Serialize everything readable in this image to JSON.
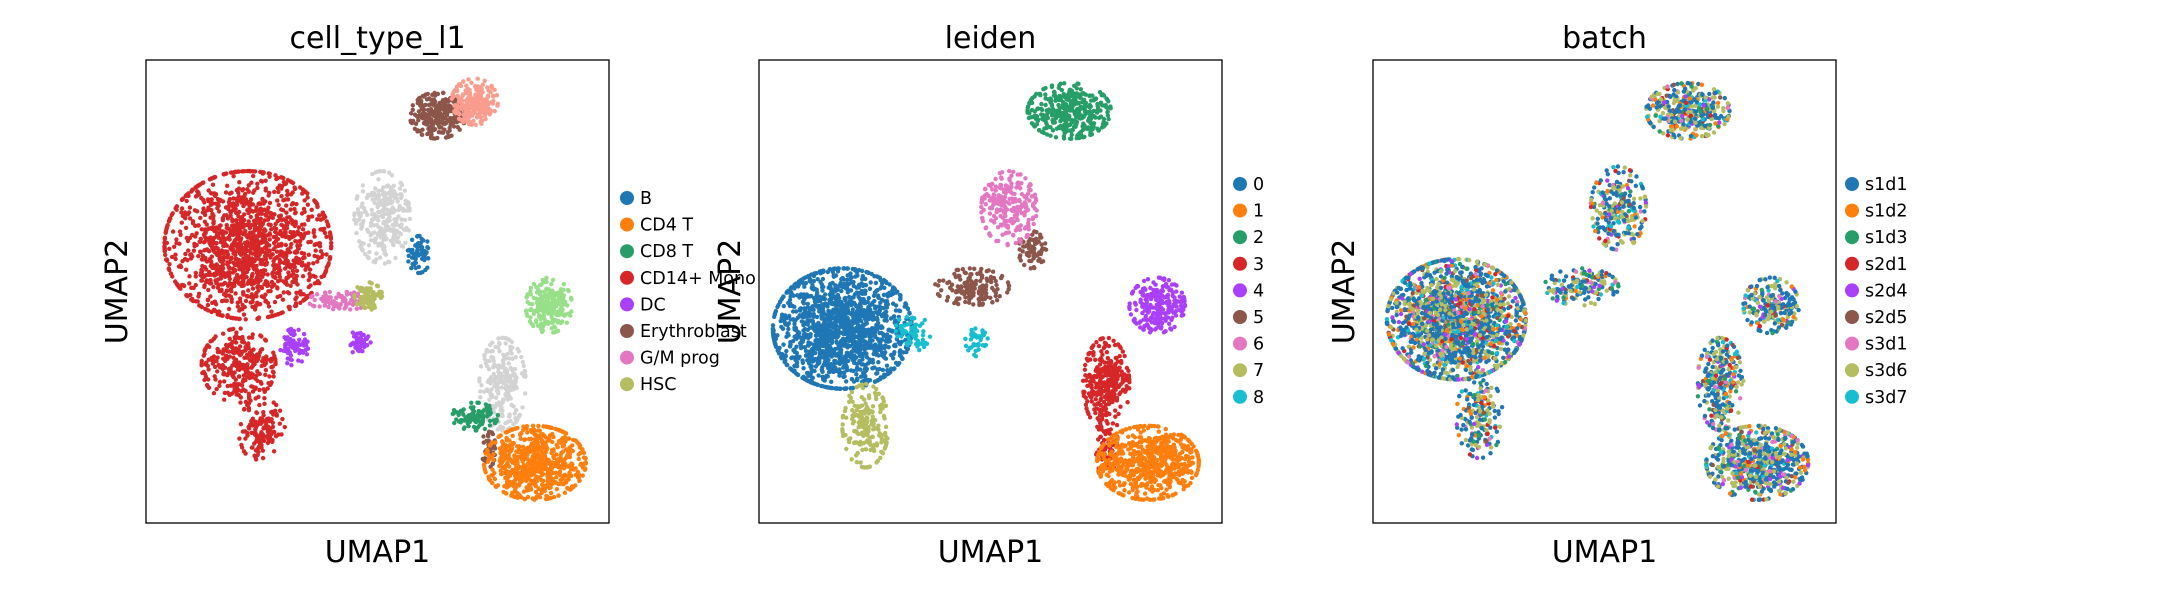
{
  "chart_data": [
    {
      "type": "scatter",
      "title": "cell_type_l1",
      "xlabel": "UMAP1",
      "ylabel": "UMAP2",
      "xticks": false,
      "yticks": false,
      "legend_position": "right",
      "legend": [
        {
          "label": "B",
          "color": "#1f77b4"
        },
        {
          "label": "CD4 T",
          "color": "#ff7f0e"
        },
        {
          "label": "CD8 T",
          "color": "#279e68"
        },
        {
          "label": "CD14+ Mono",
          "color": "#d62728"
        },
        {
          "label": "DC",
          "color": "#aa40fc"
        },
        {
          "label": "Erythroblast",
          "color": "#8c564b"
        },
        {
          "label": "G/M prog",
          "color": "#e377c2"
        },
        {
          "label": "HSC",
          "color": "#b5bd61"
        }
      ],
      "other_color": "#d3d3d3",
      "clusters": [
        {
          "category": "CD14+ Mono",
          "color": "#d62728",
          "cx": 0.22,
          "cy": 0.4,
          "rx": 0.18,
          "ry": 0.16,
          "n": 1400
        },
        {
          "category": "CD14+ Mono",
          "color": "#d62728",
          "cx": 0.2,
          "cy": 0.66,
          "rx": 0.08,
          "ry": 0.08,
          "n": 300
        },
        {
          "category": "CD14+ Mono",
          "color": "#d62728",
          "cx": 0.25,
          "cy": 0.8,
          "rx": 0.05,
          "ry": 0.07,
          "n": 130
        },
        {
          "category": "DC",
          "color": "#aa40fc",
          "cx": 0.32,
          "cy": 0.62,
          "rx": 0.03,
          "ry": 0.04,
          "n": 70
        },
        {
          "category": "DC",
          "color": "#aa40fc",
          "cx": 0.46,
          "cy": 0.61,
          "rx": 0.025,
          "ry": 0.025,
          "n": 50
        },
        {
          "category": "G/M prog",
          "color": "#e377c2",
          "cx": 0.42,
          "cy": 0.52,
          "rx": 0.07,
          "ry": 0.02,
          "n": 80
        },
        {
          "category": "HSC",
          "color": "#b5bd61",
          "cx": 0.48,
          "cy": 0.51,
          "rx": 0.03,
          "ry": 0.03,
          "n": 70
        },
        {
          "category": "other",
          "color": "#d3d3d3",
          "cx": 0.51,
          "cy": 0.34,
          "rx": 0.06,
          "ry": 0.1,
          "n": 280
        },
        {
          "category": "B",
          "color": "#1f77b4",
          "cx": 0.59,
          "cy": 0.42,
          "rx": 0.025,
          "ry": 0.04,
          "n": 70
        },
        {
          "category": "Erythroblast",
          "color": "#8c564b",
          "cx": 0.63,
          "cy": 0.12,
          "rx": 0.06,
          "ry": 0.05,
          "n": 260
        },
        {
          "category": "other",
          "color": "#fa9d8e",
          "cx": 0.71,
          "cy": 0.09,
          "rx": 0.05,
          "ry": 0.05,
          "n": 220
        },
        {
          "category": "other",
          "color": "#d3d3d3",
          "cx": 0.77,
          "cy": 0.7,
          "rx": 0.05,
          "ry": 0.1,
          "n": 220
        },
        {
          "category": "other",
          "color": "#98df8a",
          "cx": 0.87,
          "cy": 0.53,
          "rx": 0.05,
          "ry": 0.06,
          "n": 220
        },
        {
          "category": "CD8 T",
          "color": "#279e68",
          "cx": 0.71,
          "cy": 0.77,
          "rx": 0.05,
          "ry": 0.03,
          "n": 100
        },
        {
          "category": "Erythroblast",
          "color": "#8c564b",
          "cx": 0.74,
          "cy": 0.84,
          "rx": 0.015,
          "ry": 0.04,
          "n": 40
        },
        {
          "category": "CD4 T",
          "color": "#ff7f0e",
          "cx": 0.84,
          "cy": 0.87,
          "rx": 0.11,
          "ry": 0.08,
          "n": 650
        }
      ]
    },
    {
      "type": "scatter",
      "title": "leiden",
      "xlabel": "UMAP1",
      "ylabel": "UMAP2",
      "xticks": false,
      "yticks": false,
      "legend_position": "right",
      "legend": [
        {
          "label": "0",
          "color": "#1f77b4"
        },
        {
          "label": "1",
          "color": "#ff7f0e"
        },
        {
          "label": "2",
          "color": "#279e68"
        },
        {
          "label": "3",
          "color": "#d62728"
        },
        {
          "label": "4",
          "color": "#aa40fc"
        },
        {
          "label": "5",
          "color": "#8c564b"
        },
        {
          "label": "6",
          "color": "#e377c2"
        },
        {
          "label": "7",
          "color": "#b5bd61"
        },
        {
          "label": "8",
          "color": "#17becf"
        }
      ],
      "clusters": [
        {
          "category": "0",
          "color": "#1f77b4",
          "cx": 0.18,
          "cy": 0.58,
          "rx": 0.15,
          "ry": 0.13,
          "n": 1500
        },
        {
          "category": "7",
          "color": "#b5bd61",
          "cx": 0.23,
          "cy": 0.79,
          "rx": 0.05,
          "ry": 0.09,
          "n": 200
        },
        {
          "category": "8",
          "color": "#17becf",
          "cx": 0.33,
          "cy": 0.59,
          "rx": 0.04,
          "ry": 0.04,
          "n": 60
        },
        {
          "category": "8",
          "color": "#17becf",
          "cx": 0.47,
          "cy": 0.61,
          "rx": 0.025,
          "ry": 0.03,
          "n": 40
        },
        {
          "category": "5",
          "color": "#8c564b",
          "cx": 0.46,
          "cy": 0.49,
          "rx": 0.08,
          "ry": 0.04,
          "n": 160
        },
        {
          "category": "5",
          "color": "#8c564b",
          "cx": 0.59,
          "cy": 0.41,
          "rx": 0.03,
          "ry": 0.04,
          "n": 70
        },
        {
          "category": "6",
          "color": "#e377c2",
          "cx": 0.54,
          "cy": 0.32,
          "rx": 0.06,
          "ry": 0.08,
          "n": 230
        },
        {
          "category": "2",
          "color": "#279e68",
          "cx": 0.67,
          "cy": 0.11,
          "rx": 0.09,
          "ry": 0.06,
          "n": 400
        },
        {
          "category": "3",
          "color": "#d62728",
          "cx": 0.75,
          "cy": 0.7,
          "rx": 0.05,
          "ry": 0.1,
          "n": 300
        },
        {
          "category": "3",
          "color": "#d62728",
          "cx": 0.75,
          "cy": 0.84,
          "rx": 0.03,
          "ry": 0.05,
          "n": 60
        },
        {
          "category": "4",
          "color": "#aa40fc",
          "cx": 0.86,
          "cy": 0.53,
          "rx": 0.06,
          "ry": 0.06,
          "n": 230
        },
        {
          "category": "1",
          "color": "#ff7f0e",
          "cx": 0.84,
          "cy": 0.87,
          "rx": 0.11,
          "ry": 0.08,
          "n": 650
        }
      ]
    },
    {
      "type": "scatter",
      "title": "batch",
      "xlabel": "UMAP1",
      "ylabel": "UMAP2",
      "xticks": false,
      "yticks": false,
      "legend_position": "right",
      "legend": [
        {
          "label": "s1d1",
          "color": "#1f77b4"
        },
        {
          "label": "s1d2",
          "color": "#ff7f0e"
        },
        {
          "label": "s1d3",
          "color": "#279e68"
        },
        {
          "label": "s2d1",
          "color": "#d62728"
        },
        {
          "label": "s2d4",
          "color": "#aa40fc"
        },
        {
          "label": "s2d5",
          "color": "#8c564b"
        },
        {
          "label": "s3d1",
          "color": "#e377c2"
        },
        {
          "label": "s3d6",
          "color": "#b5bd61"
        },
        {
          "label": "s3d7",
          "color": "#17becf"
        }
      ],
      "mixed": true,
      "mix_weights": [
        0.42,
        0.06,
        0.05,
        0.04,
        0.05,
        0.03,
        0.04,
        0.26,
        0.05
      ],
      "clusters": [
        {
          "category": "mixed",
          "cx": 0.18,
          "cy": 0.56,
          "rx": 0.15,
          "ry": 0.13,
          "n": 1800
        },
        {
          "category": "mixed",
          "cx": 0.23,
          "cy": 0.77,
          "rx": 0.05,
          "ry": 0.09,
          "n": 180
        },
        {
          "category": "mixed",
          "cx": 0.45,
          "cy": 0.49,
          "rx": 0.08,
          "ry": 0.04,
          "n": 150
        },
        {
          "category": "mixed",
          "cx": 0.53,
          "cy": 0.32,
          "rx": 0.06,
          "ry": 0.09,
          "n": 240
        },
        {
          "category": "mixed",
          "cx": 0.68,
          "cy": 0.11,
          "rx": 0.09,
          "ry": 0.06,
          "n": 380
        },
        {
          "category": "mixed",
          "cx": 0.75,
          "cy": 0.7,
          "rx": 0.05,
          "ry": 0.1,
          "n": 280
        },
        {
          "category": "mixed",
          "cx": 0.86,
          "cy": 0.53,
          "rx": 0.06,
          "ry": 0.06,
          "n": 220
        },
        {
          "category": "mixed",
          "cx": 0.83,
          "cy": 0.87,
          "rx": 0.11,
          "ry": 0.08,
          "n": 650
        }
      ]
    }
  ]
}
